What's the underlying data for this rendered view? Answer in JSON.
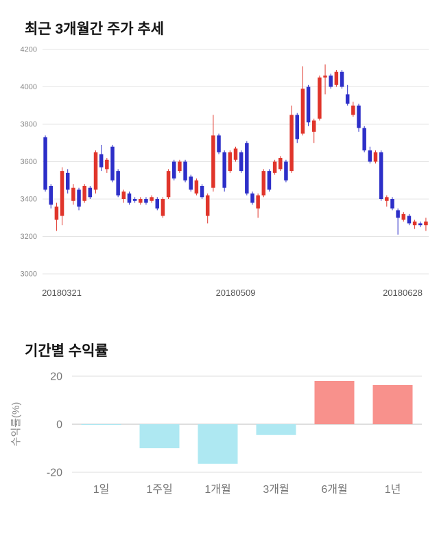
{
  "price_section": {
    "title": "최근 3개월간 주가 추세"
  },
  "returns_section": {
    "title": "기간별 수익률"
  },
  "chart_data": [
    {
      "type": "candlestick",
      "title": "최근 3개월간 주가 추세",
      "ylim": [
        3000,
        4200
      ],
      "yticks": [
        3000,
        3200,
        3400,
        3600,
        3800,
        4000,
        4200
      ],
      "xtick_labels": [
        "20180321",
        "20180509",
        "20180628"
      ],
      "up_color": "#e0352b",
      "down_color": "#2d2fc8",
      "grid_color": "#e4e4e4",
      "candles_format": [
        "open",
        "high",
        "low",
        "close"
      ],
      "candles": [
        [
          3730,
          3740,
          3440,
          3450
        ],
        [
          3470,
          3480,
          3350,
          3370
        ],
        [
          3290,
          3380,
          3230,
          3360
        ],
        [
          3310,
          3570,
          3260,
          3550
        ],
        [
          3540,
          3560,
          3430,
          3450
        ],
        [
          3390,
          3480,
          3370,
          3460
        ],
        [
          3450,
          3460,
          3340,
          3360
        ],
        [
          3390,
          3480,
          3380,
          3470
        ],
        [
          3460,
          3470,
          3400,
          3410
        ],
        [
          3450,
          3660,
          3430,
          3650
        ],
        [
          3640,
          3690,
          3550,
          3570
        ],
        [
          3560,
          3620,
          3540,
          3610
        ],
        [
          3680,
          3690,
          3490,
          3500
        ],
        [
          3550,
          3560,
          3410,
          3420
        ],
        [
          3400,
          3450,
          3380,
          3440
        ],
        [
          3430,
          3440,
          3370,
          3380
        ],
        [
          3400,
          3410,
          3380,
          3390
        ],
        [
          3380,
          3410,
          3370,
          3400
        ],
        [
          3400,
          3410,
          3370,
          3380
        ],
        [
          3390,
          3420,
          3380,
          3410
        ],
        [
          3400,
          3410,
          3340,
          3350
        ],
        [
          3310,
          3410,
          3300,
          3400
        ],
        [
          3410,
          3560,
          3400,
          3550
        ],
        [
          3600,
          3610,
          3500,
          3510
        ],
        [
          3550,
          3610,
          3540,
          3600
        ],
        [
          3600,
          3610,
          3490,
          3500
        ],
        [
          3520,
          3530,
          3440,
          3450
        ],
        [
          3430,
          3510,
          3420,
          3500
        ],
        [
          3470,
          3480,
          3400,
          3410
        ],
        [
          3310,
          3430,
          3270,
          3420
        ],
        [
          3460,
          3850,
          3440,
          3740
        ],
        [
          3740,
          3750,
          3640,
          3650
        ],
        [
          3650,
          3660,
          3440,
          3460
        ],
        [
          3550,
          3660,
          3540,
          3650
        ],
        [
          3610,
          3680,
          3600,
          3670
        ],
        [
          3650,
          3660,
          3540,
          3550
        ],
        [
          3700,
          3710,
          3420,
          3430
        ],
        [
          3430,
          3440,
          3370,
          3380
        ],
        [
          3350,
          3430,
          3300,
          3420
        ],
        [
          3420,
          3560,
          3410,
          3550
        ],
        [
          3550,
          3560,
          3440,
          3450
        ],
        [
          3540,
          3610,
          3530,
          3600
        ],
        [
          3560,
          3630,
          3550,
          3620
        ],
        [
          3600,
          3610,
          3490,
          3500
        ],
        [
          3550,
          3900,
          3540,
          3850
        ],
        [
          3850,
          3860,
          3700,
          3720
        ],
        [
          3750,
          4110,
          3740,
          3990
        ],
        [
          4000,
          4010,
          3790,
          3810
        ],
        [
          3760,
          3830,
          3700,
          3820
        ],
        [
          3830,
          4060,
          3820,
          4050
        ],
        [
          4050,
          4120,
          3960,
          4060
        ],
        [
          4060,
          4070,
          3990,
          4000
        ],
        [
          4010,
          4090,
          4000,
          4080
        ],
        [
          4080,
          4090,
          3990,
          4000
        ],
        [
          3960,
          4010,
          3900,
          3910
        ],
        [
          3850,
          3920,
          3840,
          3900
        ],
        [
          3900,
          3910,
          3760,
          3780
        ],
        [
          3780,
          3790,
          3650,
          3660
        ],
        [
          3660,
          3680,
          3590,
          3600
        ],
        [
          3600,
          3660,
          3590,
          3650
        ],
        [
          3650,
          3660,
          3390,
          3400
        ],
        [
          3390,
          3420,
          3360,
          3410
        ],
        [
          3400,
          3410,
          3340,
          3350
        ],
        [
          3340,
          3350,
          3210,
          3300
        ],
        [
          3290,
          3330,
          3280,
          3320
        ],
        [
          3310,
          3320,
          3260,
          3270
        ],
        [
          3260,
          3290,
          3240,
          3280
        ],
        [
          3270,
          3280,
          3250,
          3260
        ],
        [
          3260,
          3300,
          3230,
          3280
        ]
      ]
    },
    {
      "type": "bar",
      "title": "기간별 수익률",
      "ylabel": "수익률(%)",
      "categories": [
        "1일",
        "1주일",
        "1개월",
        "3개월",
        "6개월",
        "1년"
      ],
      "values": [
        0,
        -10,
        -16.5,
        -4.5,
        18,
        16.3
      ],
      "ylim": [
        -20,
        20
      ],
      "yticks": [
        20,
        0,
        -20
      ],
      "positive_color": "#f8918c",
      "negative_color": "#aee8f2",
      "grid_color": "#dddddd",
      "zero_line_color": "#bdbdbd"
    }
  ]
}
